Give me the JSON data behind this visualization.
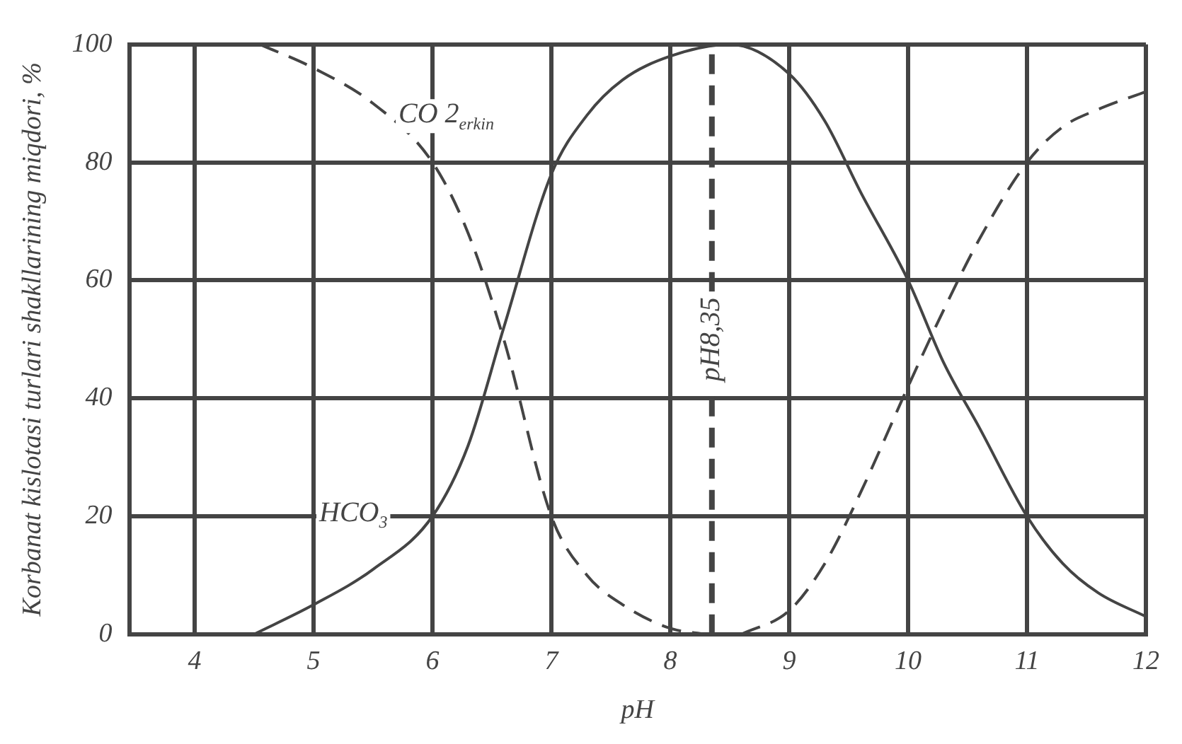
{
  "chart_data": {
    "type": "line",
    "xlabel": "pH",
    "ylabel": "Korbanat kislotasi turlari shakllarining miqdori, %",
    "xlim": [
      3.45,
      12
    ],
    "xticks": [
      4,
      5,
      6,
      7,
      8,
      9,
      10,
      11,
      12
    ],
    "ylim": [
      0,
      100
    ],
    "yticks": [
      0,
      20,
      40,
      60,
      80,
      100
    ],
    "grid": true,
    "legend": false,
    "marker": "none",
    "series": [
      {
        "name": "CO 2$_{erkin}$",
        "color": "#444444",
        "line_style": "dashed",
        "x": [
          4.55,
          5,
          5.5,
          6,
          6.3,
          6.6,
          7,
          7.3,
          7.6,
          8,
          8.3
        ],
        "values": [
          100,
          96,
          90,
          80,
          68,
          50,
          20,
          10,
          5,
          1,
          0
        ]
      },
      {
        "name": "HCO$_{3}$",
        "color": "#444444",
        "line_style": "solid",
        "x": [
          4.5,
          5,
          5.5,
          6,
          6.3,
          6.6,
          7,
          7.3,
          7.6,
          8,
          8.5,
          9,
          9.3,
          9.6,
          10,
          10.3,
          10.6,
          11,
          11.3,
          11.6,
          12
        ],
        "values": [
          0,
          5,
          11,
          20,
          32,
          52,
          78,
          88,
          94,
          98,
          100,
          95,
          87,
          75,
          60,
          46,
          35,
          20,
          12,
          7,
          3
        ]
      },
      {
        "color": "#444444",
        "line_style": "dashed",
        "x": [
          8.6,
          9,
          9.3,
          9.6,
          10,
          10.3,
          10.6,
          11,
          11.3,
          11.6,
          12
        ],
        "values": [
          0,
          4,
          12,
          24,
          42,
          55,
          67,
          80,
          86,
          89,
          92
        ]
      }
    ],
    "ref_lines": [
      {
        "axis": "x",
        "value": 8.35,
        "label": "pH8,35",
        "line_style": "dashed",
        "color": "#444444"
      }
    ]
  }
}
